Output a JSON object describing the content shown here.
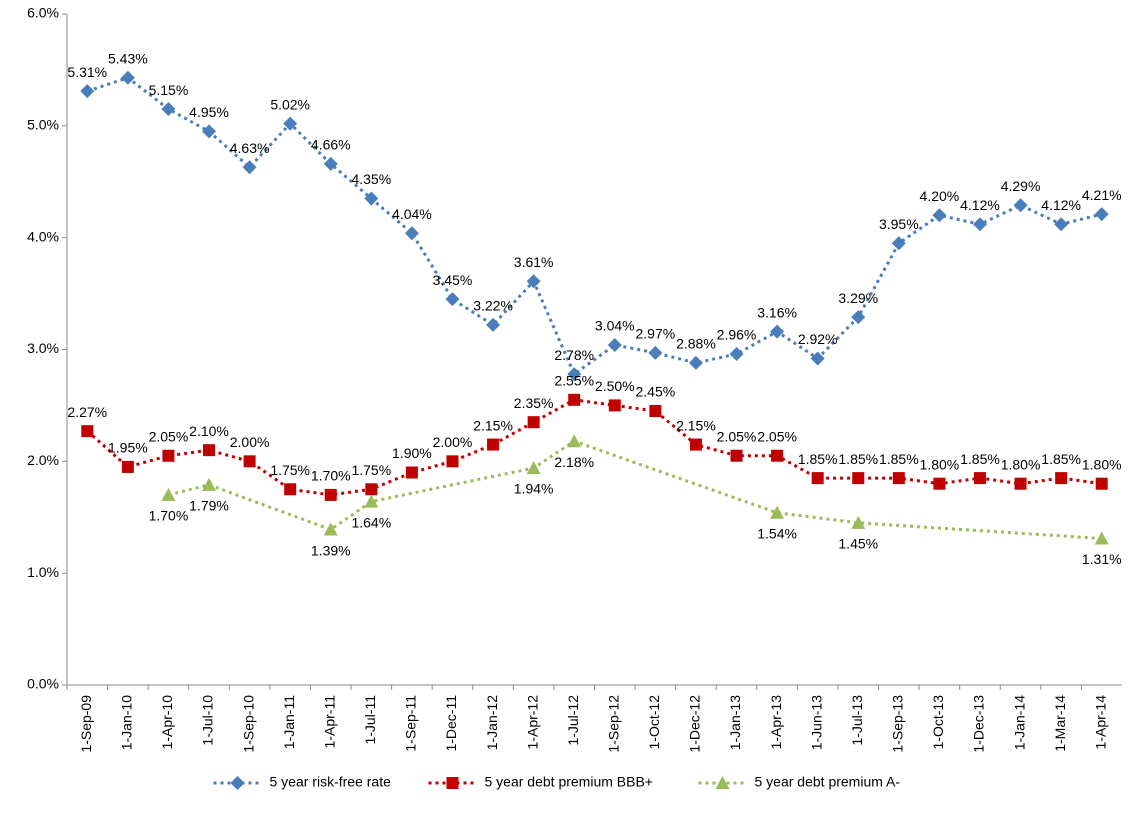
{
  "chart_data": {
    "type": "line",
    "categories": [
      "1-Sep-09",
      "1-Jan-10",
      "1-Apr-10",
      "1-Jul-10",
      "1-Sep-10",
      "1-Jan-11",
      "1-Apr-11",
      "1-Jul-11",
      "1-Sep-11",
      "1-Dec-11",
      "1-Jan-12",
      "1-Apr-12",
      "1-Jul-12",
      "1-Sep-12",
      "1-Oct-12",
      "1-Dec-12",
      "1-Jan-13",
      "1-Apr-13",
      "1-Jun-13",
      "1-Jul-13",
      "1-Sep-13",
      "1-Oct-13",
      "1-Dec-13",
      "1-Jan-14",
      "1-Mar-14",
      "1-Apr-14"
    ],
    "series": [
      {
        "name": "5 year risk-free rate",
        "color": "#4a7ebb",
        "marker": "diamond",
        "values": [
          5.31,
          5.43,
          5.15,
          4.95,
          4.63,
          5.02,
          4.66,
          4.35,
          4.04,
          3.45,
          3.22,
          3.61,
          2.78,
          3.04,
          2.97,
          2.88,
          2.96,
          3.16,
          2.92,
          3.29,
          3.95,
          4.2,
          4.12,
          4.29,
          4.12,
          4.21
        ],
        "value_labels": [
          "5.31%",
          "5.43%",
          "5.15%",
          "4.95%",
          "4.63%",
          "5.02%",
          "4.66%",
          "4.35%",
          "4.04%",
          "3.45%",
          "3.22%",
          "3.61%",
          "2.78%",
          "3.04%",
          "2.97%",
          "2.88%",
          "2.96%",
          "3.16%",
          "2.92%",
          "3.29%",
          "3.95%",
          "4.20%",
          "4.12%",
          "4.29%",
          "4.12%",
          "4.21%"
        ]
      },
      {
        "name": "5 year debt premium BBB+",
        "color": "#c00000",
        "marker": "square",
        "values": [
          2.27,
          1.95,
          2.05,
          2.1,
          2.0,
          1.75,
          1.7,
          1.75,
          1.9,
          2.0,
          2.15,
          2.35,
          2.55,
          2.5,
          2.45,
          2.15,
          2.05,
          2.05,
          1.85,
          1.85,
          1.85,
          1.8,
          1.85,
          1.8,
          1.85,
          1.8
        ],
        "value_labels": [
          "2.27%",
          "1.95%",
          "2.05%",
          "2.10%",
          "2.00%",
          "1.75%",
          "1.70%",
          "1.75%",
          "1.90%",
          "2.00%",
          "2.15%",
          "2.35%",
          "2.55%",
          "2.50%",
          "2.45%",
          "2.15%",
          "2.05%",
          "2.05%",
          "1.85%",
          "1.85%",
          "1.85%",
          "1.80%",
          "1.85%",
          "1.80%",
          "1.85%",
          "1.80%"
        ]
      },
      {
        "name": "5 year debt premium A-",
        "color": "#9bbb59",
        "marker": "triangle",
        "values": [
          null,
          null,
          1.7,
          1.79,
          null,
          null,
          1.39,
          1.64,
          null,
          null,
          null,
          1.94,
          2.18,
          null,
          null,
          null,
          null,
          1.54,
          null,
          1.45,
          null,
          null,
          null,
          null,
          null,
          1.31
        ],
        "value_labels": [
          null,
          null,
          "1.70%",
          "1.79%",
          null,
          null,
          "1.39%",
          "1.64%",
          null,
          null,
          null,
          "1.94%",
          "2.18%",
          null,
          null,
          null,
          null,
          "1.54%",
          null,
          "1.45%",
          null,
          null,
          null,
          null,
          null,
          "1.31%"
        ]
      }
    ],
    "ylim": [
      0,
      6
    ],
    "yticks": [
      {
        "value": 0,
        "label": "0.0%"
      },
      {
        "value": 1,
        "label": "1.0%"
      },
      {
        "value": 2,
        "label": "2.0%"
      },
      {
        "value": 3,
        "label": "3.0%"
      },
      {
        "value": 4,
        "label": "4.0%"
      },
      {
        "value": 5,
        "label": "5.0%"
      },
      {
        "value": 6,
        "label": "6.0%"
      }
    ],
    "connect_gaps": true,
    "line_style": "dotted",
    "legend": "bottom"
  }
}
